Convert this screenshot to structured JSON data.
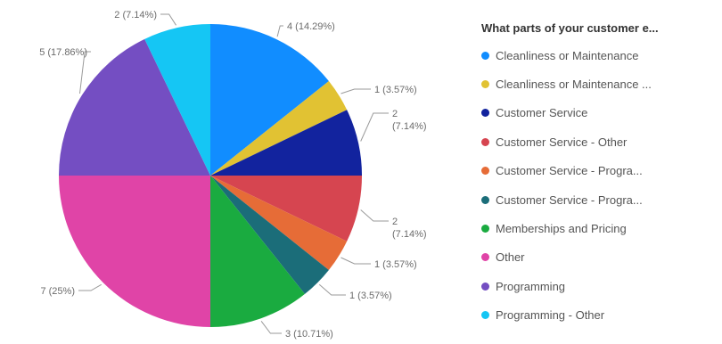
{
  "chart_data": {
    "type": "pie",
    "legend_title": "What parts of your customer e...",
    "legend_placement": "right",
    "categories": [
      "Cleanliness or Maintenance",
      "Cleanliness or Maintenance ...",
      "Customer Service",
      "Customer Service  -  Other",
      "Customer Service  -  Progra...",
      "Customer Service  -  Progra...",
      "Memberships and Pricing",
      "Other",
      "Programming",
      "Programming  -  Other"
    ],
    "values": [
      4,
      1,
      2,
      2,
      1,
      1,
      3,
      7,
      5,
      2
    ],
    "data_labels": [
      "4 (14.29%)",
      "1 (3.57%)",
      [
        "2",
        "(7.14%)"
      ],
      [
        "2",
        "(7.14%)"
      ],
      "1 (3.57%)",
      "1 (3.57%)",
      "3 (10.71%)",
      "7 (25%)",
      "5 (17.86%)",
      "2 (7.14%)"
    ],
    "colors": [
      "#118DFF",
      "#E1C233",
      "#12239E",
      "#D64550",
      "#E66C37",
      "#1B6D79",
      "#1AAB40",
      "#E044A7",
      "#744EC2",
      "#15C6F4"
    ]
  }
}
